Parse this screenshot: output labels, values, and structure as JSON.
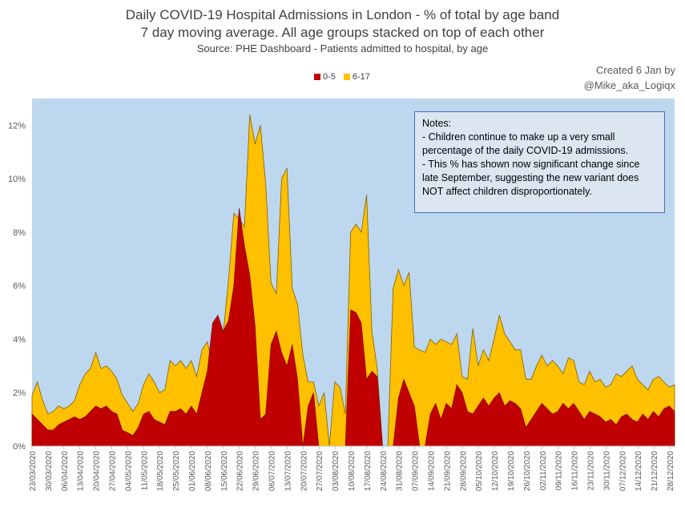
{
  "header": {
    "title_line1": "Daily COVID-19 Hospital Admissions in London - % of total by age band",
    "title_line2": "7 day moving average. All age groups stacked on top of each other",
    "source": "Source: PHE Dashboard - Patients admitted to hospital, by age"
  },
  "credit": {
    "line1": "Created 6 Jan by",
    "line2": "@Mike_aka_Logiqx"
  },
  "notes": {
    "heading": "Notes:",
    "lines": [
      "- Children continue to make up a very small",
      "percentage of the daily COVID-19 admissions.",
      "- This % has shown now significant change since",
      "late September, suggesting the new variant does",
      "NOT affect children disproportionately."
    ]
  },
  "colors": {
    "plot_bg": "#bdd7ee",
    "series_0_5": "#c00000",
    "series_6_17": "#ffc000"
  },
  "chart_data": {
    "type": "area",
    "stacked": true,
    "ylim": [
      0,
      13
    ],
    "y_ticks": [
      "0%",
      "2%",
      "4%",
      "6%",
      "8%",
      "10%",
      "12%"
    ],
    "y_tick_values": [
      0,
      2,
      4,
      6,
      8,
      10,
      12
    ],
    "x_tick_labels": [
      "23/03/2020",
      "30/03/2020",
      "06/04/2020",
      "13/04/2020",
      "20/04/2020",
      "27/04/2020",
      "04/05/2020",
      "11/05/2020",
      "18/05/2020",
      "25/05/2020",
      "01/06/2020",
      "08/06/2020",
      "15/06/2020",
      "22/06/2020",
      "29/06/2020",
      "06/07/2020",
      "13/07/2020",
      "20/07/2020",
      "27/07/2020",
      "03/08/2020",
      "10/08/2020",
      "17/08/2020",
      "24/08/2020",
      "31/08/2020",
      "07/09/2020",
      "14/09/2020",
      "21/09/2020",
      "28/09/2020",
      "05/10/2020",
      "12/10/2020",
      "19/10/2020",
      "26/10/2020",
      "02/11/2020",
      "09/11/2020",
      "16/11/2020",
      "23/11/2020",
      "30/11/2020",
      "07/12/2020",
      "14/12/2020",
      "21/12/2020",
      "28/12/2020"
    ],
    "legend": {
      "position": "top-center"
    },
    "grid": false,
    "series": [
      {
        "name": "0-5",
        "values": [
          1.2,
          1.0,
          0.8,
          0.6,
          0.6,
          0.8,
          0.9,
          1.0,
          1.1,
          1.0,
          1.1,
          1.3,
          1.5,
          1.4,
          1.5,
          1.3,
          1.2,
          0.6,
          0.5,
          0.4,
          0.7,
          1.2,
          1.3,
          1.0,
          0.9,
          0.8,
          1.3,
          1.3,
          1.4,
          1.2,
          1.5,
          1.2,
          2.0,
          2.8,
          4.6,
          4.9,
          4.3,
          4.7,
          6.0,
          8.9,
          7.5,
          6.4,
          4.5,
          1.0,
          1.2,
          3.8,
          4.3,
          3.5,
          3.0,
          3.8,
          2.5,
          0.0,
          1.5,
          2.0,
          0.0,
          0.0,
          0.0,
          0.0,
          0.0,
          0.0,
          5.1,
          5.0,
          4.6,
          2.5,
          2.8,
          2.6,
          0.0,
          0.0,
          0.0,
          1.8,
          2.5,
          2.0,
          1.5,
          0.0,
          0.0,
          1.2,
          1.6,
          1.0,
          1.6,
          1.4,
          2.3,
          2.0,
          1.3,
          1.2,
          1.5,
          1.8,
          1.5,
          1.8,
          2.0,
          1.5,
          1.7,
          1.6,
          1.4,
          0.7,
          1.0,
          1.3,
          1.6,
          1.4,
          1.2,
          1.3,
          1.6,
          1.4,
          1.6,
          1.3,
          1.0,
          1.3,
          1.2,
          1.1,
          0.9,
          1.0,
          0.8,
          1.1,
          1.2,
          1.0,
          0.9,
          1.2,
          1.0,
          1.3,
          1.1,
          1.4,
          1.5,
          1.3
        ],
        "six_to_17_top": [
          1.9,
          2.4,
          1.7,
          1.2,
          1.3,
          1.5,
          1.4,
          1.5,
          1.7,
          2.3,
          2.7,
          2.9,
          3.5,
          2.9,
          3.0,
          2.8,
          2.5,
          1.9,
          1.6,
          1.3,
          1.6,
          2.3,
          2.7,
          2.4,
          2.0,
          2.1,
          3.2,
          3.0,
          3.2,
          2.9,
          3.2,
          2.6,
          3.6,
          3.9,
          3.0,
          2.6,
          4.2,
          6.2,
          8.7,
          8.5,
          8.2,
          12.4,
          11.3,
          12.0,
          9.8,
          6.1,
          5.7,
          10.0,
          10.4,
          5.9,
          5.3,
          3.4,
          2.4,
          2.4,
          1.5,
          2.0,
          0.0,
          2.4,
          2.2,
          1.2,
          8.0,
          8.3,
          8.0,
          9.4,
          4.3,
          2.9,
          0.0,
          0.0,
          5.9,
          6.6,
          6.0,
          6.5,
          3.7,
          3.6,
          3.5,
          4.0,
          3.8,
          4.0,
          3.9,
          3.8,
          4.2,
          2.6,
          2.5,
          4.4,
          3.0,
          3.6,
          3.2,
          4.0,
          4.9,
          4.2,
          3.9,
          3.6,
          3.6,
          2.5,
          2.5,
          3.0,
          3.4,
          3.0,
          3.2,
          3.0,
          2.7,
          3.3,
          3.2,
          2.4,
          2.3,
          2.8,
          2.4,
          2.5,
          2.2,
          2.3,
          2.7,
          2.6,
          2.8,
          3.0,
          2.5,
          2.3,
          2.1,
          2.5,
          2.6,
          2.4,
          2.2,
          2.3
        ]
      },
      {
        "name": "6-17"
      }
    ]
  }
}
